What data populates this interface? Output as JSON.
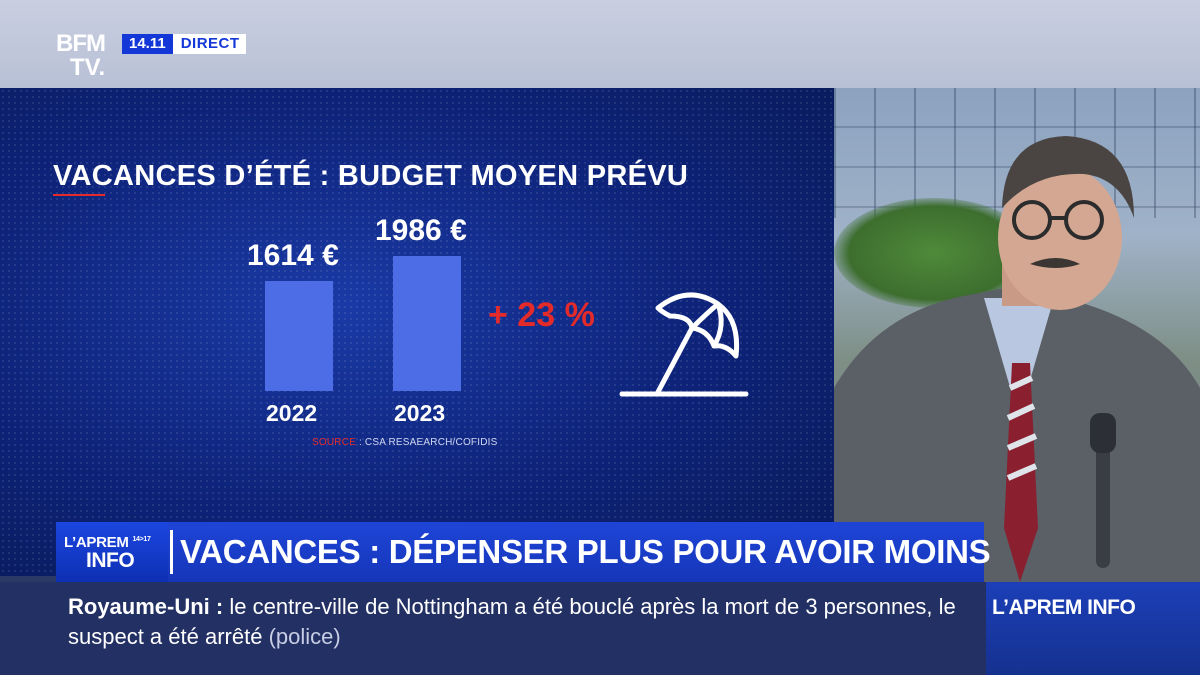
{
  "broadcast": {
    "logo_line1": "BFM",
    "logo_line2": "TV.",
    "time": "14.11",
    "live_label": "DIRECT"
  },
  "chart_data": {
    "type": "bar",
    "title": "VACANCES D’ÉTÉ : BUDGET MOYEN PRÉVU",
    "categories": [
      "2022",
      "2023"
    ],
    "values": [
      1614,
      1986
    ],
    "value_labels": [
      "1614 €",
      "1986 €"
    ],
    "unit": "€",
    "annotation": "+ 23 %",
    "source_key": "SOURCE",
    "source_text": " : CSA RESAEARCH/COFIDIS",
    "xlabel": "",
    "ylabel": ""
  },
  "colors": {
    "bar": "#4d6de6",
    "accent_red": "#e52a2a",
    "brand_blue": "#1438d8"
  },
  "icons": [
    "beach-umbrella-icon"
  ],
  "headline": {
    "program_line1": "L’APREM",
    "program_time": "14>17",
    "program_line2": "INFO",
    "text": "VACANCES : DÉPENSER PLUS POUR AVOIR MOINS"
  },
  "ticker": {
    "key": "Royaume-Uni  :",
    "text": " le centre-ville de Nottingham a été bouclé après la mort de 3 personnes, le suspect a été arrêté ",
    "tag": "(police)"
  },
  "brand_tag": "L’APREM INFO"
}
